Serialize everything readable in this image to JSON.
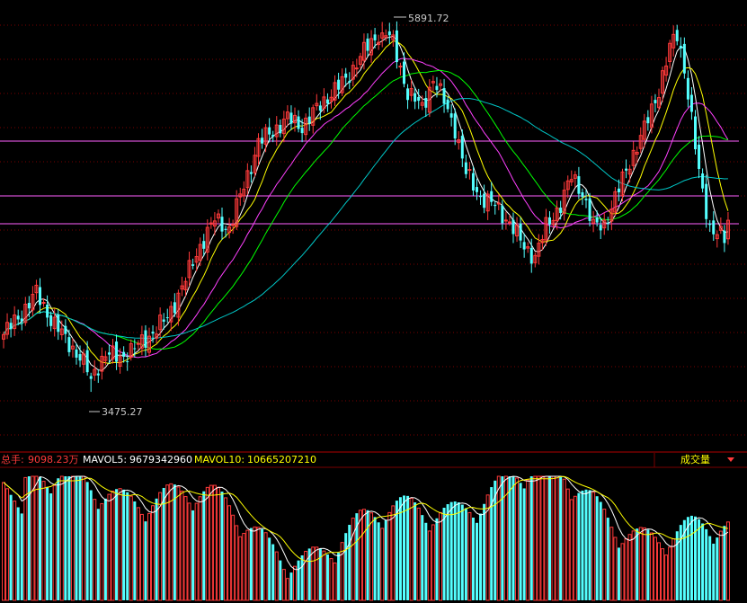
{
  "colors": {
    "up": "#ff3a3a",
    "down": "#54ffff",
    "grid": "#7a0000",
    "frame": "#b00000",
    "hline": "#ff60ff",
    "ma5": "#ffffff",
    "ma10": "#ffff00",
    "ma20": "#ff40ff",
    "ma30": "#00ff00",
    "ma60": "#00c8c8",
    "mavol5": "#ffffff",
    "mavol10": "#ffff00",
    "label_grey": "#c8c8c8"
  },
  "annotations": {
    "high": "5891.72",
    "low": "3475.27"
  },
  "volume_panel": {
    "total_label": "总手:",
    "total_value": "9098.23万",
    "mavol5_label": "MAVOL5:",
    "mavol5_value": "9679342960",
    "mavol10_label": "MAVOL10:",
    "mavol10_value": "10665207210",
    "indicator_name": "成交量",
    "dropdown_icon": "triangle-down-icon"
  },
  "chart_data": [
    {
      "type": "candlestick",
      "description_series": [
        "price",
        "MA",
        "support lines"
      ],
      "ylim": [
        3100,
        6000
      ],
      "high_point": {
        "index": 104,
        "value": 5891.72
      },
      "low_point": {
        "index": 24,
        "value": 3475.27
      },
      "horizontal_lines": [
        4850,
        4480,
        4290
      ],
      "candles_count": 200
    },
    {
      "type": "bar",
      "title": "成交量",
      "series": [
        "volume",
        "MAVOL5",
        "MAVOL10"
      ]
    }
  ]
}
